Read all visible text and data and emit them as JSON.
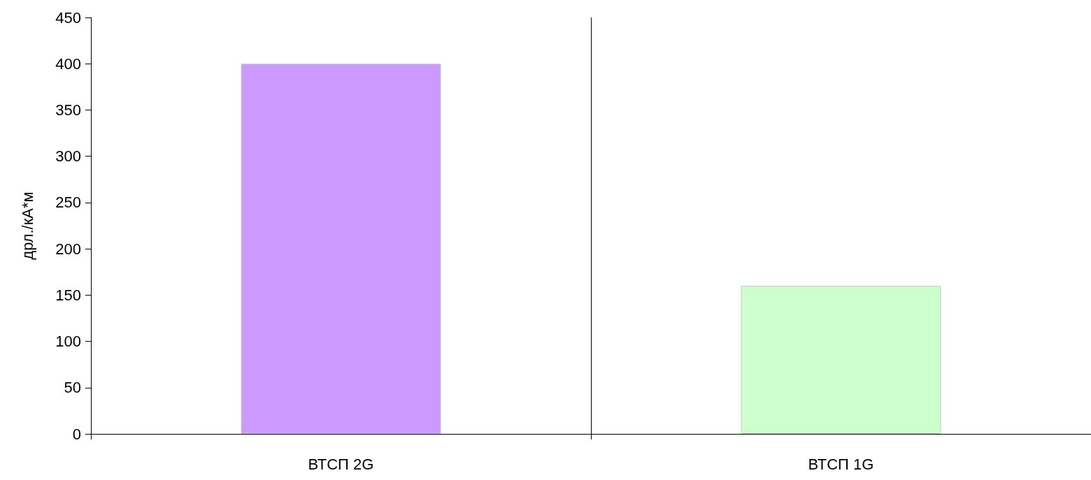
{
  "chart_data": {
    "type": "bar",
    "ylabel": "дрл./кА*м",
    "categories": [
      "ВТСП 2G",
      "ВТСП 1G"
    ],
    "values": [
      400,
      160
    ],
    "colors": [
      "#cc99ff",
      "#ccffcc"
    ],
    "ylim": [
      0,
      450
    ],
    "yticks": [
      0,
      50,
      100,
      150,
      200,
      250,
      300,
      350,
      400,
      450
    ],
    "grid": "x"
  }
}
